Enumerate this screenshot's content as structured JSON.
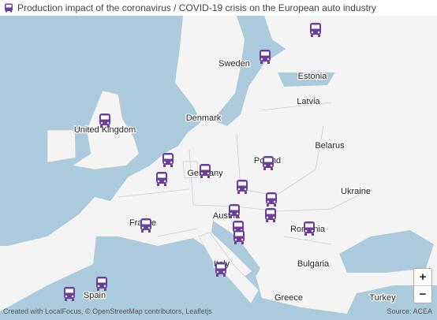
{
  "header": {
    "title": "Production impact of the coronavirus / COVID-19 crisis on the European auto industry"
  },
  "map": {
    "labels": [
      "Sweden",
      "Estonia",
      "Latvia",
      "Denmark",
      "United Kingdom",
      "Belarus",
      "Poland",
      "Germany",
      "Ukraine",
      "Austria",
      "France",
      "Romania",
      "Italy",
      "Bulgaria",
      "Spain",
      "Greece",
      "Turkey"
    ]
  },
  "controls": {
    "zoom_in": "+",
    "zoom_out": "−"
  },
  "footer": {
    "attribution": "Created with LocalFocus, © OpenStreetMap contributors, Leafletjs",
    "source": "Source: ACEA"
  }
}
